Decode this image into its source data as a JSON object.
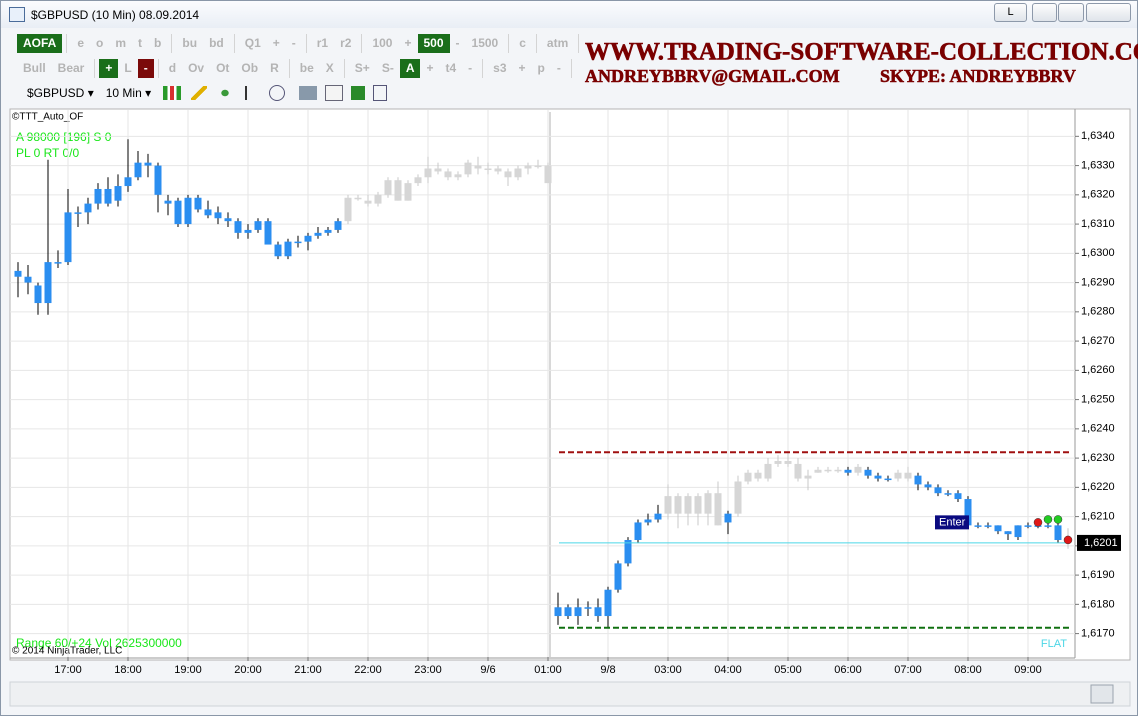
{
  "window": {
    "title": "$GBPUSD (10 Min)  08.09.2014",
    "button": "L"
  },
  "toolbar": {
    "row1": [
      [
        {
          "label": "AOFA",
          "background": "#1a6e1a"
        }
      ],
      [
        "e",
        "o",
        "m",
        "t",
        "b"
      ],
      [
        "bu",
        "bd"
      ],
      [
        "Q1",
        "+",
        "-"
      ],
      [
        "r1",
        "r2"
      ],
      [
        "100",
        "+",
        {
          "label": "500",
          "background": "#1a6e1a"
        },
        "-",
        "1500"
      ],
      [
        "c"
      ],
      [
        "atm"
      ]
    ],
    "row2": [
      [
        "Bull",
        "Bear"
      ],
      [
        {
          "label": "+",
          "background": "#1a6e1a"
        },
        "L",
        {
          "label": "-",
          "background": "#7b0a0a"
        }
      ],
      [
        "d",
        "Ov",
        "Ot",
        "Ob",
        "R"
      ],
      [
        "be",
        "X"
      ],
      [
        "S+",
        "S-",
        {
          "label": "A",
          "background": "#1a6e1a"
        },
        "+",
        "t4",
        "-"
      ],
      [
        "s3",
        "+",
        "p",
        "-"
      ]
    ],
    "instrument": "$GBPUSD",
    "interval": "10 Min"
  },
  "watermark": {
    "url": "WWW.TRADING-SOFTWARE-COLLECTION.COM",
    "email": "ANDREYBBRV@GMAIL.COM",
    "skype": "SKYPE: ANDREYBBRV"
  },
  "chart_data": {
    "type": "candlestick",
    "indicator_label": "©TTT_Auto_OF",
    "status": [
      "A 98000 [196] S 0",
      "PL 0 RT 0/0"
    ],
    "footer": "Range 60/+24 Vol 2625300000",
    "copyright": "© 2014 NinjaTrader, LLC",
    "position": "FLAT",
    "order_label": {
      "text": "Enter",
      "value": 1.6207
    },
    "categories": [
      null,
      null,
      null,
      null,
      null,
      "17:00",
      null,
      null,
      null,
      null,
      null,
      "18:00",
      null,
      null,
      null,
      null,
      null,
      "19:00",
      null,
      null,
      null,
      null,
      null,
      "20:00",
      null,
      null,
      null,
      null,
      null,
      "21:00",
      null,
      null,
      null,
      null,
      null,
      "22:00",
      null,
      null,
      null,
      null,
      null,
      "23:00",
      null,
      null,
      null,
      null,
      null,
      "9/6",
      null,
      null,
      null,
      null,
      null,
      "01:00",
      null,
      null,
      null,
      null,
      null,
      "9/8",
      null,
      null,
      null,
      null,
      null,
      "03:00",
      null,
      null,
      null,
      null,
      null,
      "04:00",
      null,
      null,
      null,
      null,
      null,
      "05:00",
      null,
      null,
      null,
      null,
      null,
      "06:00",
      null,
      null,
      null,
      null,
      null,
      "07:00",
      null,
      null,
      null,
      null,
      null,
      "08:00",
      null,
      null,
      null,
      null,
      null,
      "09:00",
      null,
      null,
      null,
      null
    ],
    "open": [
      1.6294,
      1.6292,
      1.6289,
      1.6283,
      1.6297,
      1.6297,
      1.6314,
      1.6314,
      1.6317,
      1.6322,
      1.6318,
      1.6323,
      1.6326,
      1.6331,
      1.633,
      1.6318,
      1.6318,
      1.631,
      1.6319,
      1.6315,
      1.6314,
      1.6312,
      1.6311,
      1.6308,
      1.6311,
      1.6311,
      1.6303,
      1.6299,
      1.6304,
      1.6304,
      1.6306,
      1.6307,
      1.6308,
      1.6311,
      1.6319,
      1.6318,
      1.6317,
      1.632,
      1.6325,
      1.6318,
      1.6324,
      1.6326,
      1.6329,
      1.6328,
      1.6326,
      1.6327,
      1.633,
      1.6329,
      1.6329,
      1.6328,
      1.6326,
      1.6329,
      1.633,
      1.633,
      1.6176,
      1.6179,
      1.6176,
      1.6179,
      1.6179,
      1.6176,
      1.6185,
      1.6194,
      1.6202,
      1.6208,
      1.6209,
      1.6211,
      1.6217,
      1.6211,
      1.6217,
      1.6211,
      1.6218,
      1.6208,
      1.6211,
      1.6222,
      1.6225,
      1.6223,
      1.6228,
      1.6229,
      1.6228,
      1.6223,
      1.6225,
      1.6226,
      1.6226,
      1.6226,
      1.6225,
      1.6226,
      1.6224,
      1.6223,
      1.6223,
      1.6225,
      1.6224,
      1.6221,
      1.622,
      1.6218,
      1.6218,
      1.6216,
      1.6207,
      1.6207,
      1.6207,
      1.6205,
      1.6203,
      1.6207,
      1.6207,
      1.6207,
      1.6207,
      1.6202
    ],
    "high": [
      1.6297,
      1.6296,
      1.629,
      1.6332,
      1.6301,
      1.6322,
      1.6316,
      1.6319,
      1.6324,
      1.6326,
      1.6327,
      1.6339,
      1.6335,
      1.6334,
      1.6331,
      1.632,
      1.6319,
      1.632,
      1.632,
      1.6318,
      1.6316,
      1.6314,
      1.6312,
      1.631,
      1.6312,
      1.6312,
      1.6304,
      1.6305,
      1.6306,
      1.6307,
      1.6309,
      1.6309,
      1.6312,
      1.632,
      1.632,
      1.632,
      1.6321,
      1.6326,
      1.6326,
      1.6325,
      1.6327,
      1.6333,
      1.6331,
      1.6329,
      1.6328,
      1.6332,
      1.6333,
      1.6331,
      1.633,
      1.6329,
      1.633,
      1.6331,
      1.6332,
      1.6331,
      1.6184,
      1.618,
      1.6182,
      1.6181,
      1.6182,
      1.6186,
      1.6195,
      1.6203,
      1.6209,
      1.6211,
      1.6214,
      1.6221,
      1.6218,
      1.6218,
      1.6218,
      1.6219,
      1.6222,
      1.6212,
      1.6224,
      1.6226,
      1.6226,
      1.623,
      1.6231,
      1.6232,
      1.623,
      1.6226,
      1.6227,
      1.6227,
      1.6227,
      1.6227,
      1.6228,
      1.6227,
      1.6225,
      1.6224,
      1.6226,
      1.6227,
      1.6225,
      1.6222,
      1.6221,
      1.6219,
      1.6219,
      1.6217,
      1.6208,
      1.6208,
      1.6207,
      1.6205,
      1.6207,
      1.6208,
      1.6208,
      1.6208,
      1.6208,
      1.6206
    ],
    "low": [
      1.6285,
      1.6286,
      1.6279,
      1.6279,
      1.6295,
      1.6296,
      1.6309,
      1.631,
      1.6315,
      1.6316,
      1.6316,
      1.6321,
      1.6325,
      1.6326,
      1.6314,
      1.6313,
      1.6309,
      1.6309,
      1.6314,
      1.6312,
      1.631,
      1.6309,
      1.6305,
      1.6305,
      1.6307,
      1.6303,
      1.6298,
      1.6298,
      1.6302,
      1.6301,
      1.6305,
      1.6306,
      1.6307,
      1.631,
      1.6318,
      1.6316,
      1.6316,
      1.6319,
      1.6318,
      1.6318,
      1.6323,
      1.6324,
      1.6327,
      1.6325,
      1.6325,
      1.6326,
      1.6327,
      1.6327,
      1.6327,
      1.6323,
      1.6325,
      1.6327,
      1.6329,
      1.6324,
      1.6173,
      1.6175,
      1.6173,
      1.6176,
      1.6174,
      1.6172,
      1.6184,
      1.6193,
      1.6201,
      1.6207,
      1.6208,
      1.6209,
      1.6206,
      1.6207,
      1.6207,
      1.6207,
      1.6207,
      1.6204,
      1.621,
      1.6221,
      1.6222,
      1.6222,
      1.6227,
      1.6227,
      1.6222,
      1.6219,
      1.6225,
      1.6225,
      1.6225,
      1.6224,
      1.6224,
      1.6223,
      1.6222,
      1.6222,
      1.6222,
      1.6222,
      1.6219,
      1.6219,
      1.6217,
      1.6217,
      1.6215,
      1.6206,
      1.6206,
      1.6206,
      1.6204,
      1.6202,
      1.6202,
      1.6206,
      1.6206,
      1.6206,
      1.6201,
      1.6199
    ],
    "close": [
      1.6292,
      1.629,
      1.6283,
      1.6297,
      1.6297,
      1.6314,
      1.6314,
      1.6317,
      1.6322,
      1.6317,
      1.6323,
      1.6326,
      1.6331,
      1.633,
      1.632,
      1.6317,
      1.631,
      1.6319,
      1.6315,
      1.6313,
      1.6312,
      1.6311,
      1.6307,
      1.6307,
      1.6308,
      1.6303,
      1.6299,
      1.6304,
      1.6304,
      1.6306,
      1.6307,
      1.6308,
      1.6311,
      1.6319,
      1.6319,
      1.6317,
      1.632,
      1.6325,
      1.6318,
      1.6324,
      1.6326,
      1.6329,
      1.6328,
      1.6326,
      1.6327,
      1.6331,
      1.6329,
      1.6329,
      1.6328,
      1.6326,
      1.6329,
      1.633,
      1.633,
      1.6324,
      1.6179,
      1.6176,
      1.6179,
      1.6179,
      1.6176,
      1.6185,
      1.6194,
      1.6202,
      1.6208,
      1.6209,
      1.6211,
      1.6217,
      1.6211,
      1.6217,
      1.6211,
      1.6218,
      1.6207,
      1.6211,
      1.6222,
      1.6225,
      1.6223,
      1.6228,
      1.6229,
      1.6228,
      1.6223,
      1.6224,
      1.6226,
      1.6226,
      1.6226,
      1.6225,
      1.6227,
      1.6224,
      1.6223,
      1.6223,
      1.6225,
      1.6223,
      1.6221,
      1.622,
      1.6218,
      1.6218,
      1.6216,
      1.6207,
      1.6207,
      1.6207,
      1.6205,
      1.6204,
      1.6207,
      1.6207,
      1.6207,
      1.6207,
      1.6202,
      1.6201
    ],
    "colors": [
      "#2b8ef0",
      "#2b8ef0",
      "#2b8ef0",
      "#2b8ef0",
      "#2b8ef0",
      "#2b8ef0",
      "#2b8ef0",
      "#2b8ef0",
      "#2b8ef0",
      "#2b8ef0",
      "#2b8ef0",
      "#2b8ef0",
      "#2b8ef0",
      "#2b8ef0",
      "#2b8ef0",
      "#2b8ef0",
      "#2b8ef0",
      "#2b8ef0",
      "#2b8ef0",
      "#2b8ef0",
      "#2b8ef0",
      "#2b8ef0",
      "#2b8ef0",
      "#2b8ef0",
      "#2b8ef0",
      "#2b8ef0",
      "#2b8ef0",
      "#2b8ef0",
      "#2b8ef0",
      "#2b8ef0",
      "#2b8ef0",
      "#2b8ef0",
      "#2b8ef0",
      "#d6d6d6",
      "#d6d6d6",
      "#d6d6d6",
      "#d6d6d6",
      "#d6d6d6",
      "#d6d6d6",
      "#d6d6d6",
      "#d6d6d6",
      "#d6d6d6",
      "#d6d6d6",
      "#d6d6d6",
      "#d6d6d6",
      "#d6d6d6",
      "#d6d6d6",
      "#d6d6d6",
      "#d6d6d6",
      "#d6d6d6",
      "#d6d6d6",
      "#d6d6d6",
      "#d6d6d6",
      "#d6d6d6",
      "#2b8ef0",
      "#2b8ef0",
      "#2b8ef0",
      "#2b8ef0",
      "#2b8ef0",
      "#2b8ef0",
      "#2b8ef0",
      "#2b8ef0",
      "#2b8ef0",
      "#2b8ef0",
      "#2b8ef0",
      "#d6d6d6",
      "#d6d6d6",
      "#d6d6d6",
      "#d6d6d6",
      "#d6d6d6",
      "#d6d6d6",
      "#2b8ef0",
      "#d6d6d6",
      "#d6d6d6",
      "#d6d6d6",
      "#d6d6d6",
      "#d6d6d6",
      "#d6d6d6",
      "#d6d6d6",
      "#d6d6d6",
      "#d6d6d6",
      "#d6d6d6",
      "#d6d6d6",
      "#2b8ef0",
      "#d6d6d6",
      "#2b8ef0",
      "#2b8ef0",
      "#2b8ef0",
      "#d6d6d6",
      "#d6d6d6",
      "#2b8ef0",
      "#2b8ef0",
      "#2b8ef0",
      "#2b8ef0",
      "#2b8ef0",
      "#2b8ef0",
      "#2b8ef0",
      "#2b8ef0",
      "#2b8ef0",
      "#2b8ef0",
      "#2b8ef0",
      "#2b8ef0",
      "#2b8ef0",
      "#2b8ef0",
      "#2b8ef0",
      "#d6d6d6"
    ],
    "ylim": [
      1.6162,
      1.6349
    ],
    "yticks": [
      {
        "value": 1.617,
        "label": "1,6170"
      },
      {
        "value": 1.618,
        "label": "1,6180"
      },
      {
        "value": 1.619,
        "label": "1,6190"
      },
      {
        "value": 1.62,
        "label": "1,6200"
      },
      {
        "value": 1.621,
        "label": "1,6210"
      },
      {
        "value": 1.622,
        "label": "1,6220"
      },
      {
        "value": 1.623,
        "label": "1,6230"
      },
      {
        "value": 1.624,
        "label": "1,6240"
      },
      {
        "value": 1.625,
        "label": "1,6250"
      },
      {
        "value": 1.626,
        "label": "1,6260"
      },
      {
        "value": 1.627,
        "label": "1,6270"
      },
      {
        "value": 1.628,
        "label": "1,6280"
      },
      {
        "value": 1.629,
        "label": "1,6290"
      },
      {
        "value": 1.63,
        "label": "1,6300"
      },
      {
        "value": 1.631,
        "label": "1,6310"
      },
      {
        "value": 1.632,
        "label": "1,6320"
      },
      {
        "value": 1.633,
        "label": "1,6330"
      },
      {
        "value": 1.634,
        "label": "1,6340"
      }
    ],
    "grid": true,
    "price_lines": [
      {
        "value": 1.6232,
        "color": "#a01010",
        "style": "dashed"
      },
      {
        "value": 1.6172,
        "color": "#107010",
        "style": "dashed"
      },
      {
        "value": 1.6201,
        "color": "#4cd6e6",
        "style": "solid",
        "label": "1,6201"
      }
    ],
    "signals": [
      {
        "index": 102,
        "value": 1.6207,
        "color": "#e01818"
      },
      {
        "index": 103,
        "value": 1.6208,
        "color": "#22cc22"
      },
      {
        "index": 104,
        "value": 1.6208,
        "color": "#22cc22"
      },
      {
        "index": 105,
        "value": 1.6201,
        "color": "#e01818"
      }
    ]
  }
}
